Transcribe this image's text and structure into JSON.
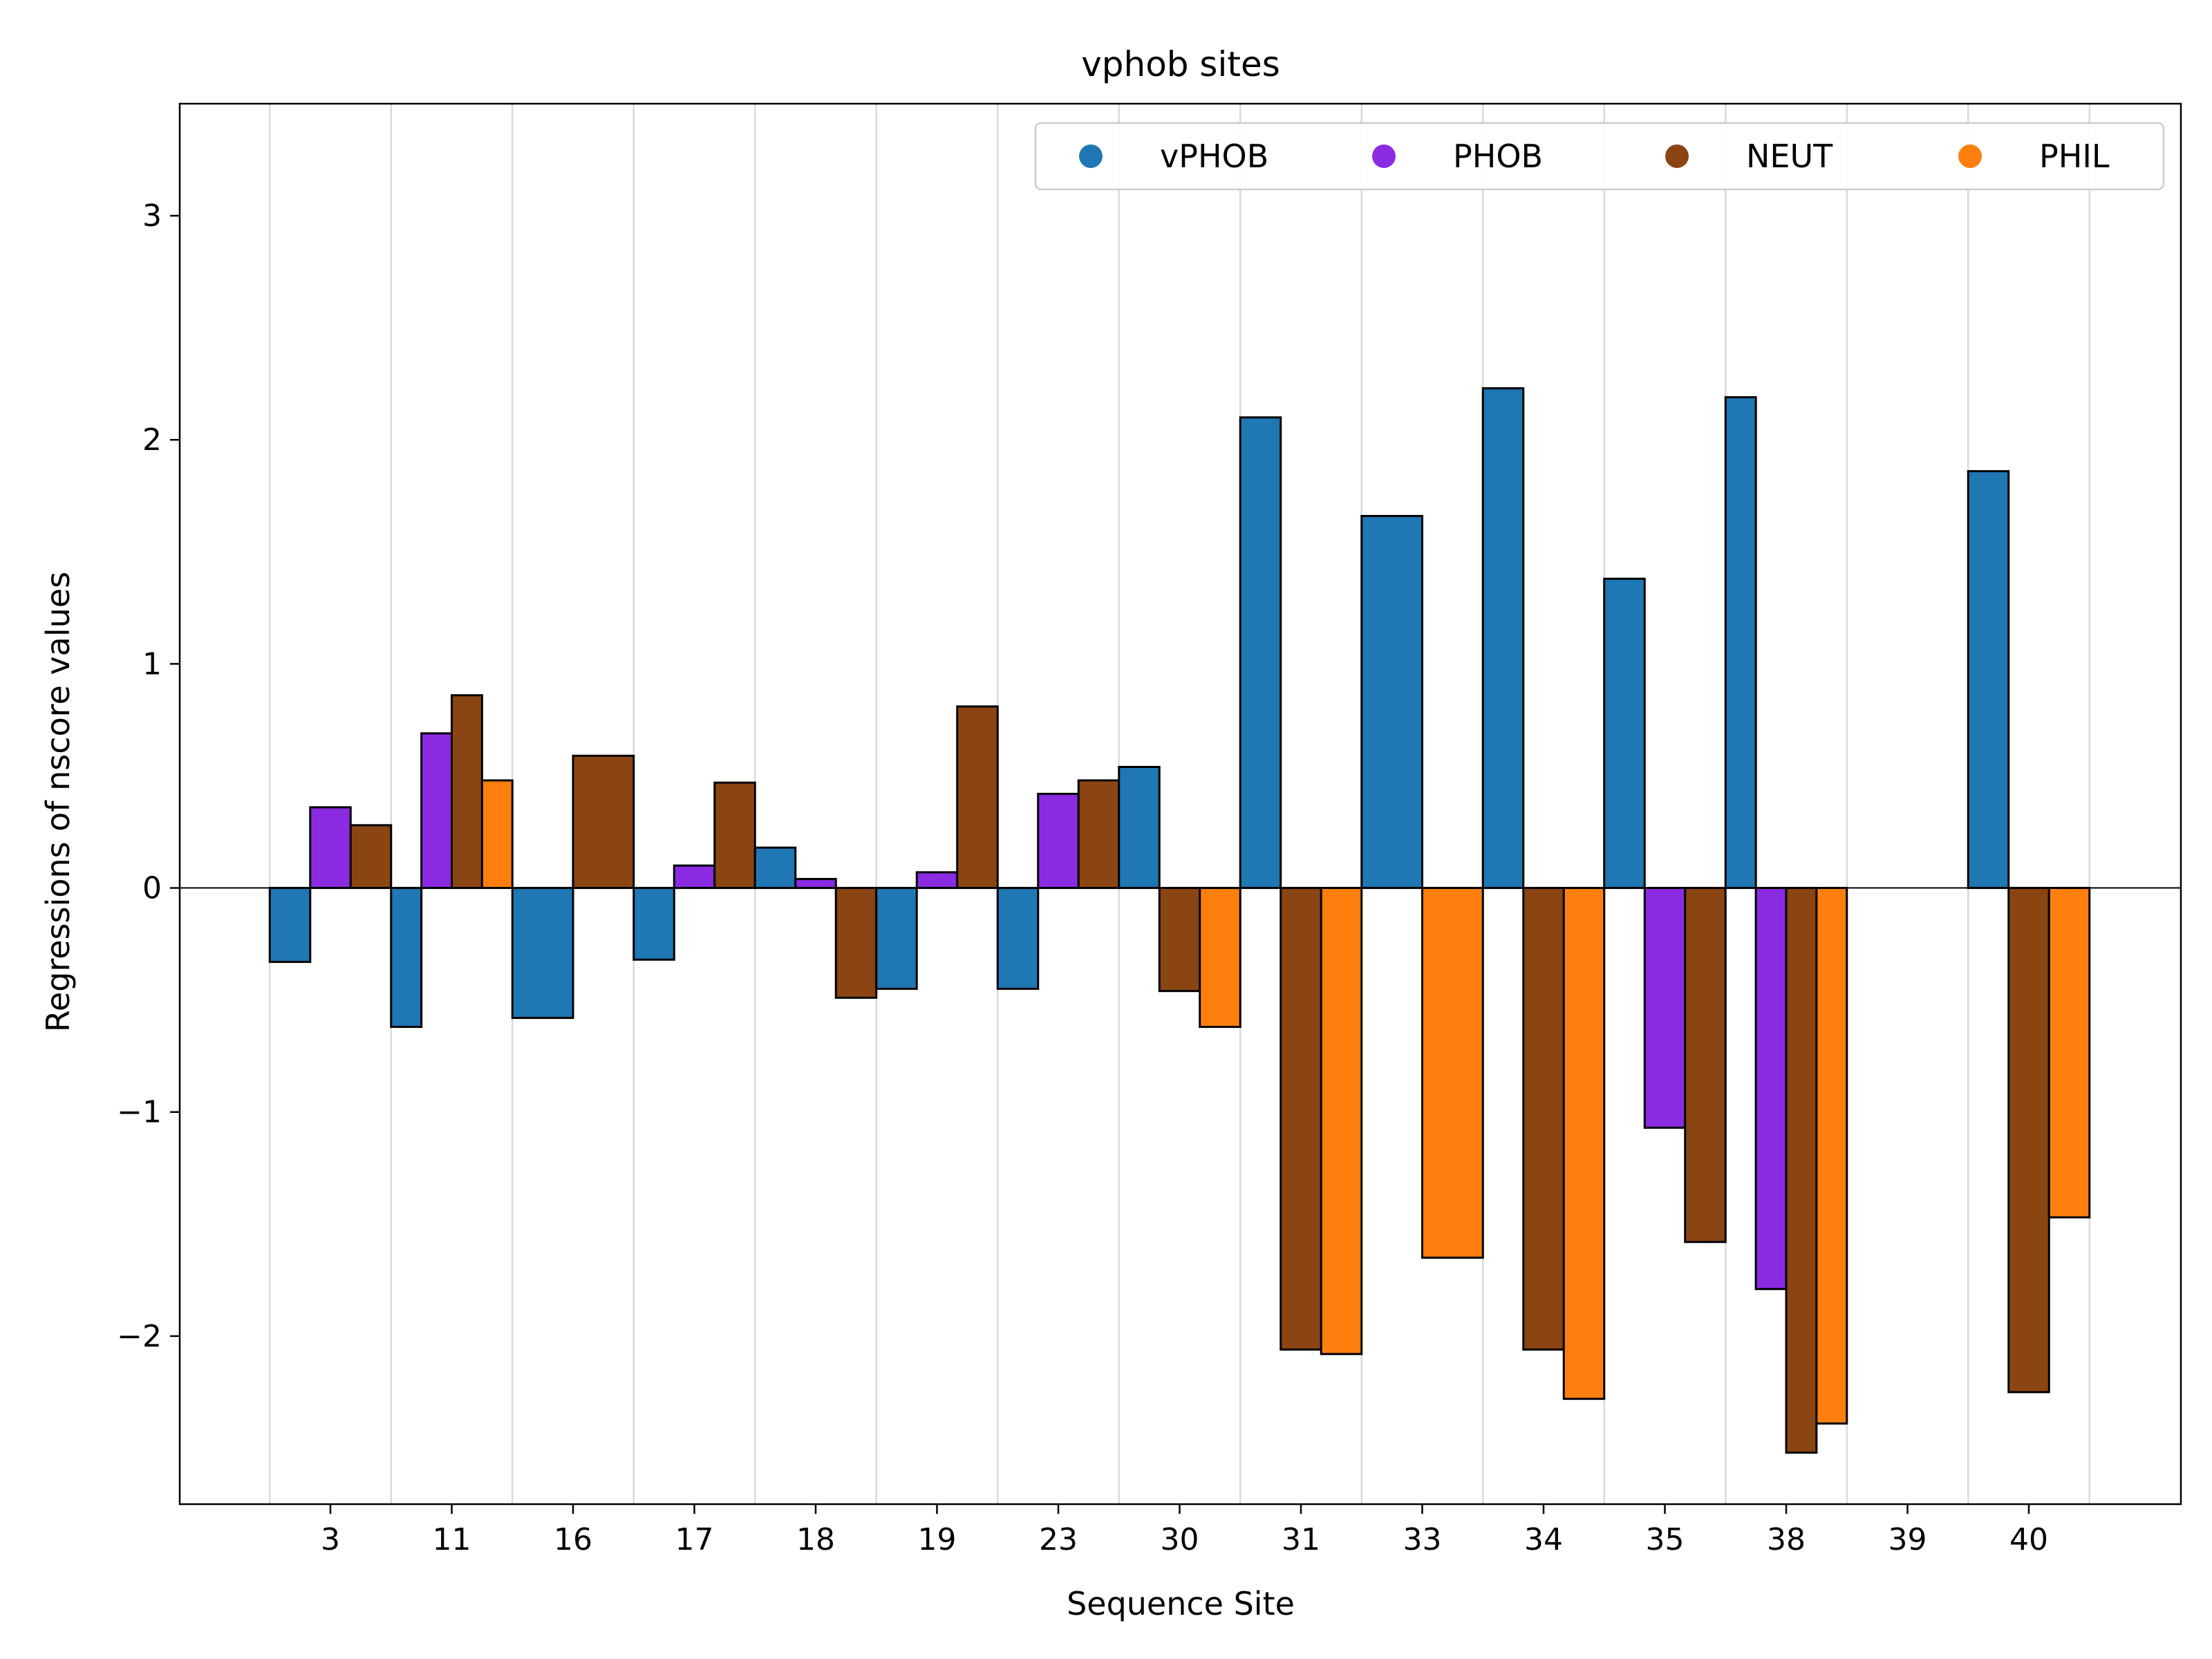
{
  "chart_data": {
    "type": "bar",
    "title": "vphob sites",
    "xlabel": "Sequence Site",
    "ylabel": "Regressions of nscore values",
    "categories": [
      "3",
      "11",
      "16",
      "17",
      "18",
      "19",
      "23",
      "30",
      "31",
      "33",
      "34",
      "35",
      "38",
      "39",
      "40"
    ],
    "ylim": [
      -2.75,
      3.5
    ],
    "yticks": [
      -2,
      -1,
      0,
      1,
      2,
      3
    ],
    "ytick_labels": [
      "−2",
      "−1",
      "0",
      "1",
      "2",
      "3"
    ],
    "grid": "vertical lines between categories",
    "legend_position": "top-right",
    "zero_line": true,
    "series": [
      {
        "name": "vPHOB",
        "color": "#1f77b4",
        "values": [
          -0.33,
          -0.62,
          -0.58,
          -0.32,
          0.18,
          -0.45,
          -0.45,
          0.54,
          2.1,
          1.66,
          2.23,
          1.38,
          2.19,
          null,
          1.86
        ]
      },
      {
        "name": "PHOB",
        "color": "#8a2be2",
        "values": [
          0.36,
          0.69,
          null,
          0.1,
          0.04,
          0.07,
          0.42,
          null,
          null,
          null,
          null,
          -1.07,
          -1.79,
          null,
          null
        ]
      },
      {
        "name": "NEUT",
        "color": "#8b4513",
        "values": [
          0.28,
          0.86,
          0.59,
          0.47,
          -0.49,
          0.81,
          0.48,
          -0.46,
          -2.06,
          null,
          -2.06,
          -1.58,
          -2.52,
          null,
          -2.25
        ]
      },
      {
        "name": "PHIL",
        "color": "#ff7f0e",
        "values": [
          null,
          0.48,
          null,
          null,
          null,
          null,
          null,
          -0.62,
          -2.08,
          -1.65,
          -2.28,
          null,
          -2.39,
          null,
          -1.47
        ]
      }
    ]
  }
}
